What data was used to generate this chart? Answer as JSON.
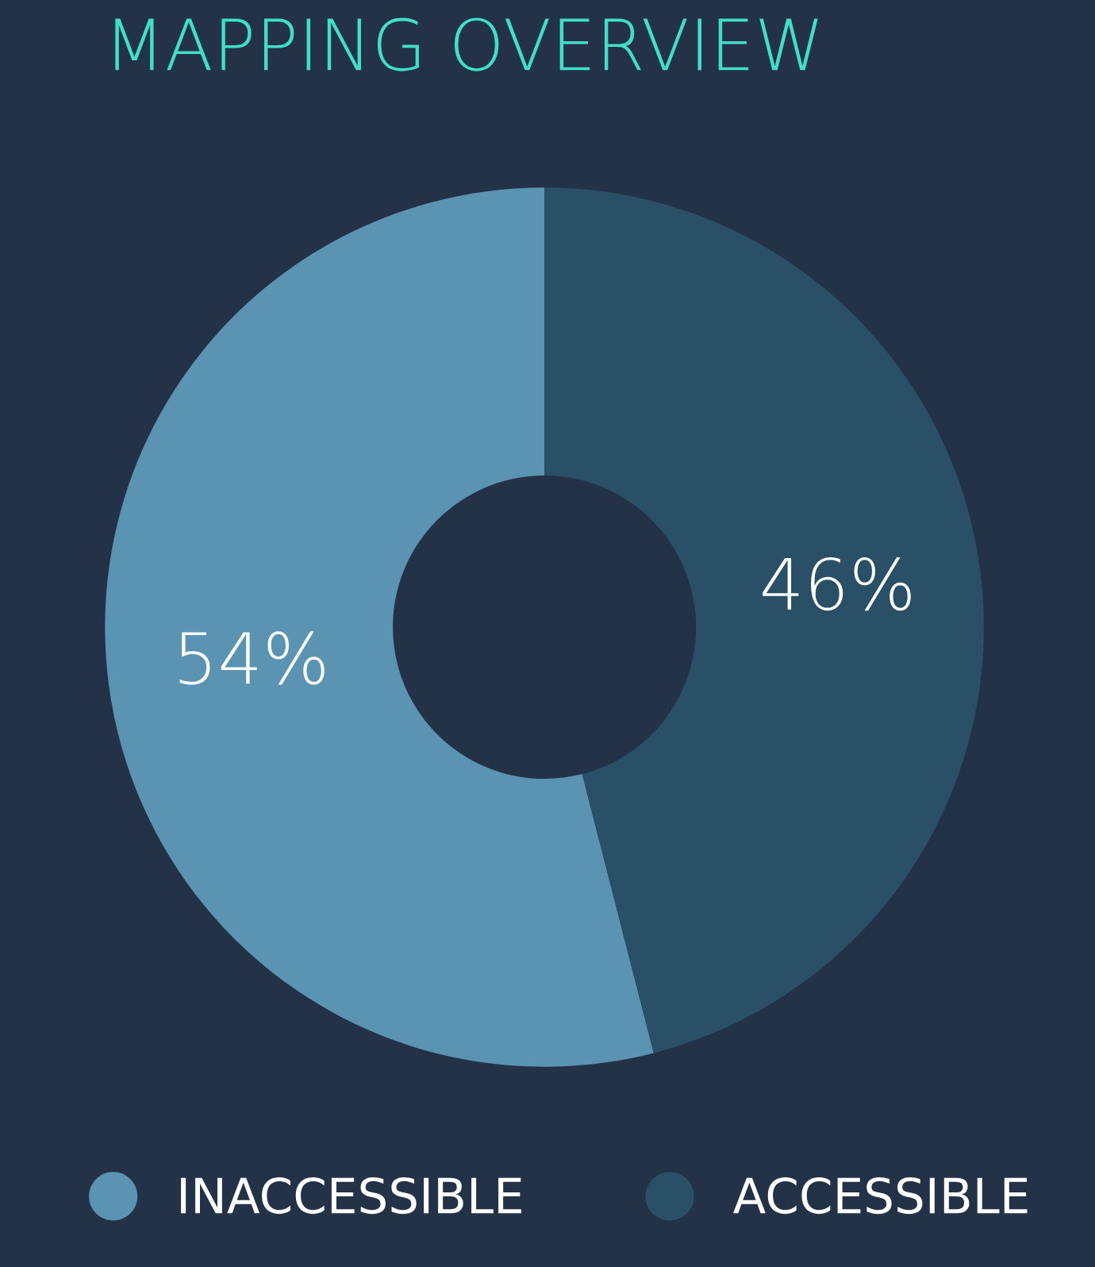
{
  "chart_data": {
    "type": "donut",
    "title": "MAPPING OVERVIEW",
    "categories": [
      "INACCESSIBLE",
      "ACCESSIBLE"
    ],
    "values": [
      54,
      46
    ],
    "colors": [
      "#5b93b3",
      "#2a5068"
    ],
    "value_labels": [
      "54%",
      "46%"
    ],
    "legend": "bottom"
  }
}
